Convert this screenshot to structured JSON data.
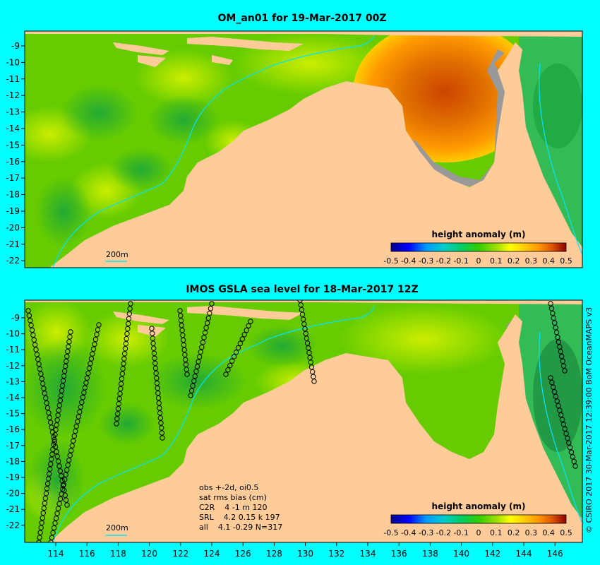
{
  "top_panel": {
    "title": "OM_an01 for 19-Mar-2017 00Z",
    "contour_label": "200m",
    "legend": {
      "title": "height anomaly (m)",
      "ticks": [
        "-0.5",
        "-0.4",
        "-0.3",
        "-0.2",
        "-0.1",
        "0",
        "0.1",
        "0.2",
        "0.3",
        "0.4",
        "0.5"
      ]
    }
  },
  "bottom_panel": {
    "title": "IMOS GSLA sea level  for 18-Mar-2017 12Z",
    "contour_label": "200m",
    "legend": {
      "title": "height anomaly (m)",
      "ticks": [
        "-0.5",
        "-0.4",
        "-0.3",
        "-0.2",
        "-0.1",
        "0",
        "0.1",
        "0.2",
        "0.3",
        "0.4",
        "0.5"
      ]
    },
    "stats": [
      "obs +-2d, oi0.5",
      "sat rms bias (cm)",
      "C2R    4 -1 m 120",
      "SRL    4.2 0.15 k 197",
      "all    4.1 -0.29 N=317"
    ]
  },
  "y_axis_labels": [
    "-9",
    "-10",
    "-11",
    "-12",
    "-13",
    "-14",
    "-15",
    "-16",
    "-17",
    "-18",
    "-19",
    "-20",
    "-21",
    "-22"
  ],
  "x_axis_labels": [
    "114",
    "116",
    "118",
    "120",
    "122",
    "124",
    "126",
    "128",
    "130",
    "132",
    "134",
    "136",
    "138",
    "140",
    "142",
    "144",
    "146"
  ],
  "credit": "© CSIRO 2017  30-Mar-2017 12:39:00 BoM OceanMAPS v3",
  "colors": {
    "background": "#00ffff",
    "land": "#ffcc99",
    "sea_base": "#66cc00",
    "shelf_grey": "#999999",
    "colorbar": [
      "#00008b",
      "#0000ff",
      "#0099ff",
      "#00cccc",
      "#00cc66",
      "#33cc00",
      "#99dd00",
      "#ffff00",
      "#ffcc00",
      "#ff9900",
      "#ee6600",
      "#cc3300",
      "#8b0000"
    ]
  }
}
